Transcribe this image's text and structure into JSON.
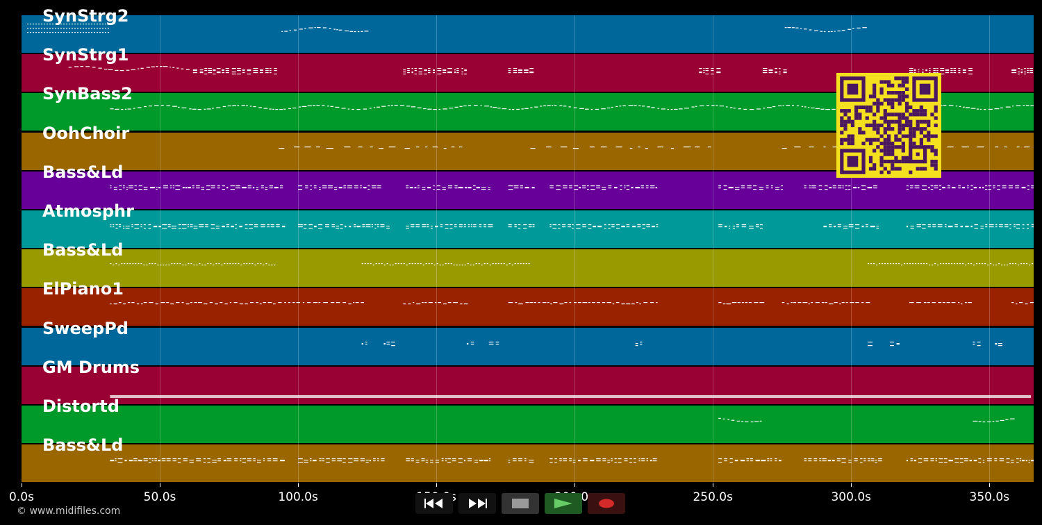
{
  "tracks": [
    {
      "name": "SynStrg2",
      "color": "#00679a"
    },
    {
      "name": "SynStrg1",
      "color": "#990033"
    },
    {
      "name": "SynBass2",
      "color": "#009a2a"
    },
    {
      "name": "OohChoir",
      "color": "#9a6600"
    },
    {
      "name": "Bass&Ld",
      "color": "#660099"
    },
    {
      "name": "Atmosphr",
      "color": "#009999"
    },
    {
      "name": "Bass&Ld",
      "color": "#999900"
    },
    {
      "name": "ElPiano1",
      "color": "#992200"
    },
    {
      "name": "SweepPd",
      "color": "#00679a"
    },
    {
      "name": "GM Drums",
      "color": "#990033"
    },
    {
      "name": "Distortd",
      "color": "#009a2a"
    },
    {
      "name": "Bass&Ld",
      "color": "#9a6600"
    }
  ],
  "timeline": {
    "max_seconds": 366,
    "ticks": [
      "0.0s",
      "50.0s",
      "100.0s",
      "150.0s",
      "200.0s",
      "250.0s",
      "300.0s",
      "350.0s"
    ],
    "tick_values": [
      0,
      50,
      100,
      150,
      200,
      250,
      300,
      350
    ]
  },
  "copyright": "© www.midifiles.com",
  "transport": {
    "rewind_icon": "rewind-icon",
    "forward_icon": "fast-forward-icon",
    "stop_icon": "stop-icon",
    "play_icon": "play-icon",
    "record_icon": "record-icon"
  },
  "qr_icon": "qr-code-icon"
}
